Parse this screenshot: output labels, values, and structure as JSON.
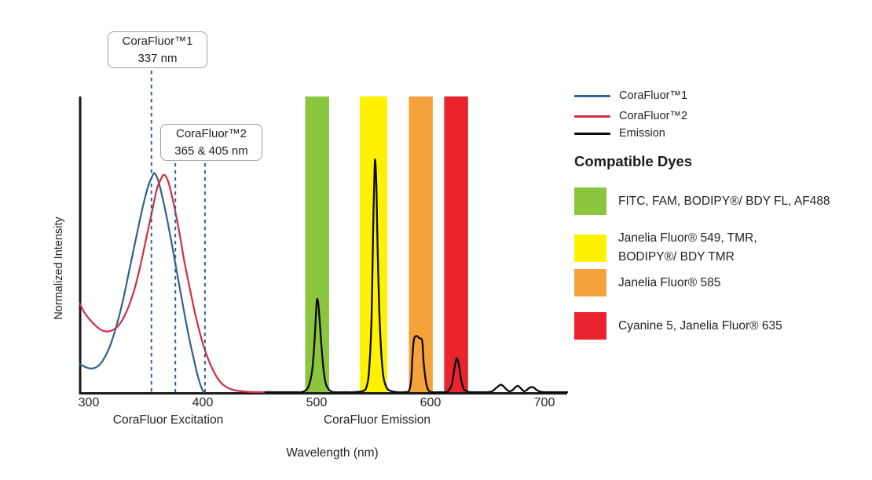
{
  "chart_data": {
    "type": "line",
    "title": "",
    "xlabel": "Wavelength (nm)",
    "ylabel": "Normalized Intensity",
    "x_ticks": [
      300,
      400,
      500,
      600,
      700
    ],
    "x_range_nm": [
      292,
      720
    ],
    "ylim": [
      0,
      1
    ],
    "grid": false,
    "region_labels": {
      "excitation": "CoraFluor Excitation",
      "emission": "CoraFluor Emission"
    },
    "marker_color": "#2E6190",
    "annotations": [
      {
        "title": "CoraFluor™1",
        "value": "337 nm",
        "marker_nm": [
          355
        ]
      },
      {
        "title": "CoraFluor™2",
        "value": "365 & 405 nm",
        "marker_nm": [
          376,
          402
        ]
      }
    ],
    "emission_bands": [
      {
        "color": "#8CC63F",
        "from_nm": 490,
        "to_nm": 511
      },
      {
        "color": "#FFF200",
        "from_nm": 538,
        "to_nm": 562
      },
      {
        "color": "#F6A23B",
        "from_nm": 581,
        "to_nm": 602
      },
      {
        "color": "#E9242F",
        "from_nm": 612,
        "to_nm": 633
      }
    ],
    "series": [
      {
        "id": "corafluor1-excitation",
        "name": "CoraFluor™1",
        "color": "#2F618E",
        "width": 2.2,
        "points": [
          [
            292,
            0.095
          ],
          [
            297,
            0.085
          ],
          [
            302,
            0.08
          ],
          [
            307,
            0.085
          ],
          [
            312,
            0.105
          ],
          [
            318,
            0.15
          ],
          [
            324,
            0.22
          ],
          [
            330,
            0.31
          ],
          [
            336,
            0.42
          ],
          [
            342,
            0.53
          ],
          [
            347,
            0.62
          ],
          [
            352,
            0.695
          ],
          [
            356,
            0.732
          ],
          [
            358,
            0.74
          ],
          [
            361,
            0.715
          ],
          [
            364,
            0.67
          ],
          [
            368,
            0.6
          ],
          [
            372,
            0.52
          ],
          [
            376,
            0.435
          ],
          [
            380,
            0.35
          ],
          [
            384,
            0.265
          ],
          [
            388,
            0.185
          ],
          [
            392,
            0.115
          ],
          [
            395,
            0.065
          ],
          [
            398,
            0.025
          ],
          [
            400,
            0.006
          ],
          [
            401,
            0
          ]
        ]
      },
      {
        "id": "corafluor2-excitation",
        "name": "CoraFluor™2",
        "color": "#D02F45",
        "width": 2.2,
        "points": [
          [
            292,
            0.3
          ],
          [
            296,
            0.27
          ],
          [
            301,
            0.245
          ],
          [
            306,
            0.225
          ],
          [
            311,
            0.21
          ],
          [
            316,
            0.205
          ],
          [
            321,
            0.21
          ],
          [
            326,
            0.225
          ],
          [
            331,
            0.255
          ],
          [
            336,
            0.3
          ],
          [
            341,
            0.36
          ],
          [
            346,
            0.44
          ],
          [
            351,
            0.53
          ],
          [
            356,
            0.62
          ],
          [
            360,
            0.69
          ],
          [
            364,
            0.725
          ],
          [
            366,
            0.735
          ],
          [
            369,
            0.72
          ],
          [
            372,
            0.68
          ],
          [
            376,
            0.61
          ],
          [
            380,
            0.53
          ],
          [
            384,
            0.44
          ],
          [
            389,
            0.345
          ],
          [
            394,
            0.255
          ],
          [
            399,
            0.18
          ],
          [
            404,
            0.12
          ],
          [
            409,
            0.075
          ],
          [
            414,
            0.042
          ],
          [
            419,
            0.022
          ],
          [
            425,
            0.01
          ],
          [
            432,
            0.004
          ],
          [
            440,
            0.001
          ],
          [
            452,
            0
          ],
          [
            460,
            0
          ]
        ]
      },
      {
        "id": "emission",
        "name": "Emission",
        "color": "#0A0A0A",
        "width": 2.3,
        "points": [
          [
            455,
            0
          ],
          [
            468,
            0
          ],
          [
            480,
            0
          ],
          [
            486,
            0
          ],
          [
            490,
            0.005
          ],
          [
            493,
            0.02
          ],
          [
            496,
            0.07
          ],
          [
            498,
            0.16
          ],
          [
            500,
            0.3
          ],
          [
            501,
            0.31
          ],
          [
            502,
            0.28
          ],
          [
            504,
            0.17
          ],
          [
            506,
            0.08
          ],
          [
            508,
            0.03
          ],
          [
            511,
            0.008
          ],
          [
            515,
            0
          ],
          [
            524,
            0
          ],
          [
            532,
            0
          ],
          [
            541,
            0.004
          ],
          [
            544,
            0.02
          ],
          [
            546,
            0.07
          ],
          [
            548,
            0.22
          ],
          [
            549,
            0.4
          ],
          [
            550,
            0.62
          ],
          [
            551,
            0.765
          ],
          [
            551.5,
            0.78
          ],
          [
            552.5,
            0.7
          ],
          [
            553.5,
            0.5
          ],
          [
            555,
            0.28
          ],
          [
            557,
            0.12
          ],
          [
            559,
            0.045
          ],
          [
            562,
            0.012
          ],
          [
            566,
            0.003
          ],
          [
            571,
            0
          ],
          [
            577,
            0
          ],
          [
            581,
            0.004
          ],
          [
            583,
            0.04
          ],
          [
            584,
            0.11
          ],
          [
            585,
            0.165
          ],
          [
            586,
            0.185
          ],
          [
            588,
            0.19
          ],
          [
            590,
            0.183
          ],
          [
            592,
            0.18
          ],
          [
            593,
            0.165
          ],
          [
            594,
            0.1
          ],
          [
            596,
            0.035
          ],
          [
            598,
            0.008
          ],
          [
            601,
            0
          ],
          [
            607,
            0
          ],
          [
            613,
            0
          ],
          [
            616,
            0.006
          ],
          [
            619,
            0.03
          ],
          [
            621,
            0.08
          ],
          [
            623,
            0.115
          ],
          [
            625,
            0.09
          ],
          [
            627,
            0.04
          ],
          [
            629,
            0.012
          ],
          [
            632,
            0.003
          ],
          [
            636,
            0
          ],
          [
            644,
            0
          ],
          [
            650,
            0
          ],
          [
            654,
            0.003
          ],
          [
            658,
            0.015
          ],
          [
            662,
            0.025
          ],
          [
            666,
            0.012
          ],
          [
            669,
            0.003
          ],
          [
            672,
            0.007
          ],
          [
            675,
            0.018
          ],
          [
            677,
            0.021
          ],
          [
            680,
            0.01
          ],
          [
            682,
            0.003
          ],
          [
            684,
            0.006
          ],
          [
            687,
            0.015
          ],
          [
            690,
            0.017
          ],
          [
            693,
            0.008
          ],
          [
            696,
            0.002
          ],
          [
            701,
            0
          ],
          [
            710,
            0
          ],
          [
            720,
            0
          ]
        ]
      }
    ]
  },
  "legend": {
    "items": [
      {
        "label": "CoraFluor™1",
        "color": "#2F618E"
      },
      {
        "label": "CoraFluor™2",
        "color": "#D02F45"
      },
      {
        "label": "Emission",
        "color": "#0A0A0A"
      }
    ]
  },
  "dyes": {
    "heading": "Compatible Dyes",
    "items": [
      {
        "color": "#8CC63F",
        "label": "FITC, FAM, BODIPY®/ BDY FL, AF488"
      },
      {
        "color": "#FFF200",
        "label": "Janelia Fluor® 549, TMR,\nBODIPY®/ BDY TMR"
      },
      {
        "color": "#F6A23B",
        "label": "Janelia Fluor® 585"
      },
      {
        "color": "#E9242F",
        "label": "Cyanine 5, Janelia Fluor® 635"
      }
    ]
  }
}
